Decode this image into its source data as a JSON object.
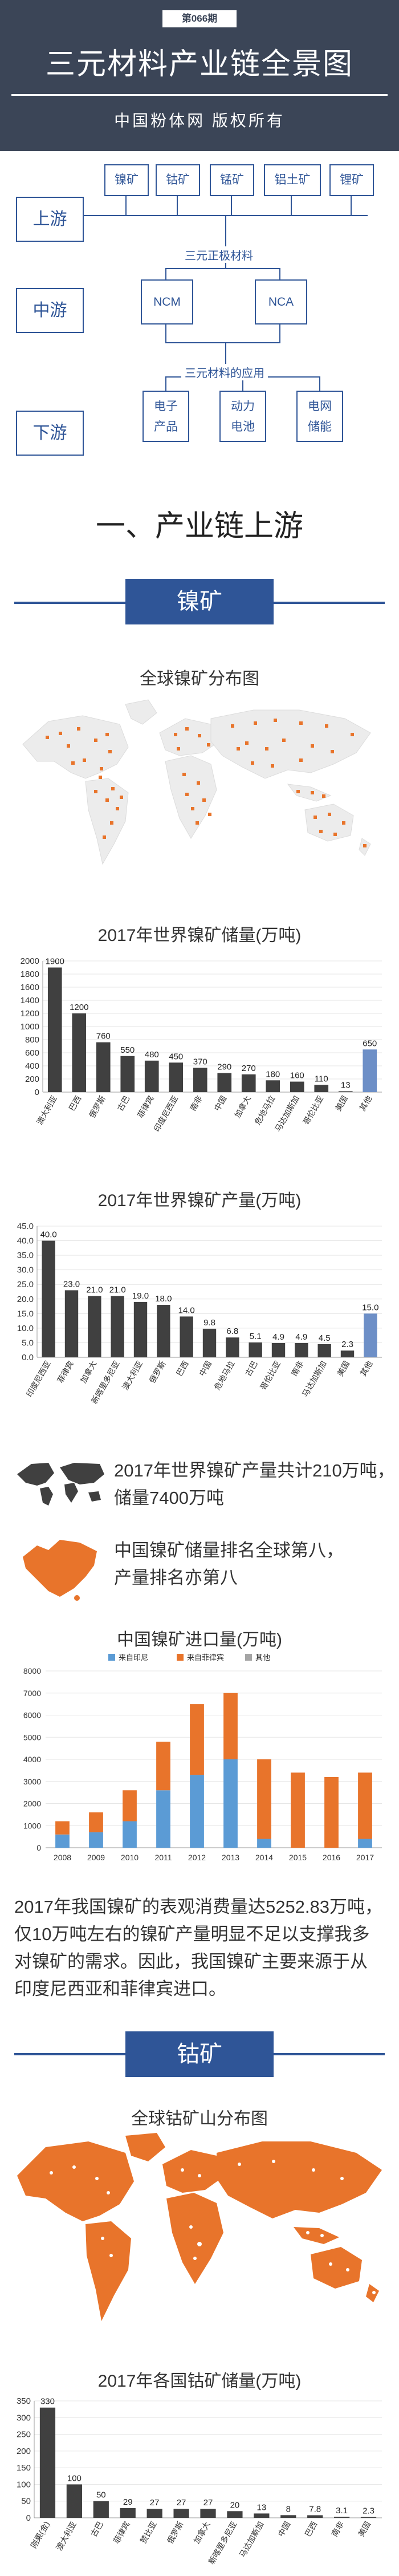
{
  "header": {
    "issue": "第066期",
    "title": "三元材料产业链全景图",
    "subtitle": "中国粉体网 版权所有"
  },
  "chain": {
    "levels": [
      "上游",
      "中游",
      "下游"
    ],
    "upstream_nodes": [
      "镍矿",
      "钴矿",
      "锰矿",
      "铝土矿",
      "锂矿"
    ],
    "material_label": "三元正极材料",
    "midstream_nodes": [
      "NCM",
      "NCA"
    ],
    "application_label": "三元材料的应用",
    "downstream_nodes": [
      [
        "电子",
        "产品"
      ],
      [
        "动力",
        "电池"
      ],
      [
        "电网",
        "储能"
      ]
    ]
  },
  "section1": {
    "title": "一、产业链上游"
  },
  "nickel": {
    "banner": "镍矿",
    "map_title": "全球镍矿分布图",
    "info_text": [
      "2017年世界镍矿产量共计210万吨，",
      "储量7400万吨",
      "中国镍矿储量排名全球第八，",
      "产量排名亦第八"
    ],
    "paragraph": [
      "2017年我国镍矿的表观消费量达5252.83万吨，",
      "仅10万吨左右的镍矿产量明显不足以支撑我多",
      "对镍矿的需求。因此，我国镍矿主要来源于从",
      "印度尼西亚和菲律宾进口。"
    ]
  },
  "cobalt": {
    "banner": "钴矿",
    "map_title": "全球钴矿山分布图"
  },
  "colors": {
    "accent": "#2f5597",
    "header": "#3b4557",
    "orange": "#e8742b",
    "blue_bar": "#5b9bd5",
    "bar_dark": "#404040"
  },
  "chart_data": [
    {
      "type": "bar",
      "title": "2017年世界镍矿储量(万吨)",
      "categories": [
        "澳大利亚",
        "巴西",
        "俄罗斯",
        "古巴",
        "菲律宾",
        "印度尼西亚",
        "南非",
        "中国",
        "加拿大",
        "危地马拉",
        "马达加斯加",
        "哥伦比亚",
        "美国",
        "其他"
      ],
      "values": [
        1900,
        1200,
        760,
        550,
        480,
        450,
        370,
        290,
        270,
        180,
        160,
        110,
        13,
        650
      ],
      "yticks": [
        0,
        200,
        400,
        600,
        800,
        1000,
        1200,
        1400,
        1600,
        1800,
        2000
      ],
      "ylim": [
        0,
        2000
      ]
    },
    {
      "type": "bar",
      "title": "2017年世界镍矿产量(万吨)",
      "categories": [
        "印度尼西亚",
        "菲律宾",
        "加拿大",
        "新喀里多尼亚",
        "澳大利亚",
        "俄罗斯",
        "巴西",
        "中国",
        "危地马拉",
        "古巴",
        "哥伦比亚",
        "南非",
        "马达加斯加",
        "美国",
        "其他"
      ],
      "values": [
        40.0,
        23.0,
        21.0,
        21.0,
        19.0,
        18.0,
        14.0,
        9.8,
        6.8,
        5.1,
        4.9,
        4.9,
        4.5,
        2.3,
        15.0
      ],
      "yticks": [
        0,
        5.0,
        10.0,
        15.0,
        20.0,
        25.0,
        30.0,
        35.0,
        40.0,
        45.0
      ],
      "ylim": [
        0,
        45
      ]
    },
    {
      "type": "bar",
      "title": "中国镍矿进口量(万吨)",
      "legend": [
        "来自印尼",
        "来自菲律宾",
        "其他"
      ],
      "categories": [
        "2008",
        "2009",
        "2010",
        "2011",
        "2012",
        "2013",
        "2014",
        "2015",
        "2016",
        "2017"
      ],
      "series": [
        {
          "name": "来自印尼",
          "values": [
            600,
            700,
            1200,
            2600,
            3300,
            4000,
            400,
            0,
            0,
            400
          ]
        },
        {
          "name": "来自菲律宾",
          "values": [
            600,
            900,
            1400,
            2200,
            3200,
            3000,
            3600,
            3400,
            3200,
            3000
          ]
        },
        {
          "name": "其他",
          "values": [
            0,
            0,
            0,
            0,
            0,
            0,
            0,
            0,
            0,
            0
          ]
        }
      ],
      "yticks": [
        0,
        1000,
        2000,
        3000,
        4000,
        5000,
        6000,
        7000,
        8000
      ],
      "ylim": [
        0,
        8000
      ]
    },
    {
      "type": "bar",
      "title": "2017年各国钴矿储量(万吨)",
      "categories": [
        "刚果(金)",
        "澳大利亚",
        "古巴",
        "菲律宾",
        "赞比亚",
        "俄罗斯",
        "加拿大",
        "新喀里多尼亚",
        "马达加斯加",
        "中国",
        "巴西",
        "南非",
        "美国"
      ],
      "values": [
        330,
        100,
        50,
        29,
        27,
        27,
        27,
        20,
        13,
        8,
        7.8,
        3.1,
        2.3
      ],
      "yticks": [
        0,
        50,
        100,
        150,
        200,
        250,
        300,
        350
      ],
      "ylim": [
        0,
        350
      ]
    }
  ]
}
